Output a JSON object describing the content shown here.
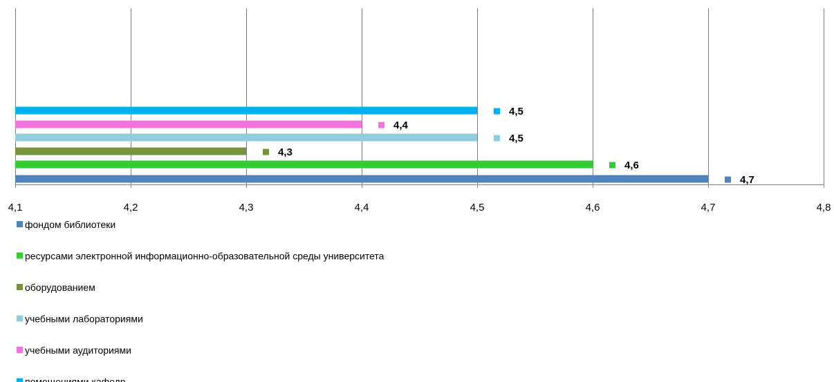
{
  "chart_data": {
    "type": "bar",
    "orientation": "horizontal",
    "xlim": [
      4.1,
      4.8
    ],
    "x_ticks": [
      "4,1",
      "4,2",
      "4,3",
      "4,4",
      "4,5",
      "4,6",
      "4,7",
      "4,8"
    ],
    "tick_values": [
      4.1,
      4.2,
      4.3,
      4.4,
      4.5,
      4.6,
      4.7,
      4.8
    ],
    "grid": true,
    "legend_position": "bottom-left",
    "series": [
      {
        "name": "фондом библиотеки",
        "value": 4.7,
        "label": "4,7",
        "color": "#4F81BD"
      },
      {
        "name": "ресурсами электронной информационно-образовательной среды университета",
        "value": 4.6,
        "label": "4,6",
        "color": "#33CC33"
      },
      {
        "name": "оборудованием",
        "value": 4.3,
        "label": "4,3",
        "color": "#77933C"
      },
      {
        "name": "учебными лабораториями",
        "value": 4.5,
        "label": "4,5",
        "color": "#92CDDC"
      },
      {
        "name": "учебными аудиториями",
        "value": 4.4,
        "label": "4,4",
        "color": "#F075E0"
      },
      {
        "name": "помещениями кафедр",
        "value": 4.5,
        "label": "4,5",
        "color": "#00B0F0"
      }
    ]
  }
}
